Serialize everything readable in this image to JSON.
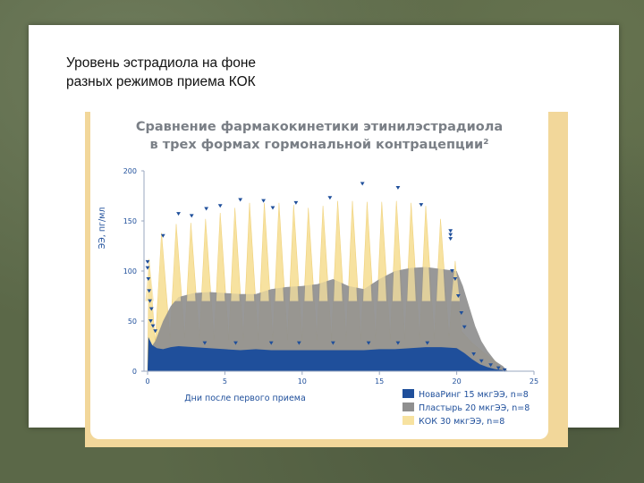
{
  "slide": {
    "title_line1": "Уровень эстрадиола на фоне",
    "title_line2": "разных режимов приема КОК"
  },
  "chart_data": {
    "type": "area",
    "title_line1": "Сравнение фармакокинетики этинилэстрадиола",
    "title_line2": "в трех формах гормональной контрацепции²",
    "xlabel": "Дни после первого приема",
    "ylabel": "ЭЭ, пг/мл",
    "xlim": [
      0,
      25
    ],
    "ylim": [
      0,
      200
    ],
    "x_ticks": [
      0,
      5,
      10,
      15,
      20,
      25
    ],
    "y_ticks": [
      0,
      50,
      100,
      150,
      200
    ],
    "grid": false,
    "legend_position": "bottom-right",
    "colors": {
      "ring": "#1f4f9b",
      "patch": "#8f8f8f",
      "pill": "#f7e2a0",
      "markers": "#1f4f9b",
      "text": "#1f4f9b"
    },
    "series": [
      {
        "name": "НоваРинг 15 мкгЭЭ, n=8",
        "color": "#1f4f9b",
        "points": [
          [
            0,
            0
          ],
          [
            0.05,
            34
          ],
          [
            0.3,
            26
          ],
          [
            0.6,
            23
          ],
          [
            1,
            22
          ],
          [
            1.5,
            24
          ],
          [
            2,
            25
          ],
          [
            3,
            24
          ],
          [
            4,
            23
          ],
          [
            5,
            22
          ],
          [
            6,
            21
          ],
          [
            7,
            22
          ],
          [
            8,
            21
          ],
          [
            9,
            21
          ],
          [
            10,
            21
          ],
          [
            11,
            21
          ],
          [
            12,
            21
          ],
          [
            13,
            21
          ],
          [
            14,
            21
          ],
          [
            15,
            22
          ],
          [
            16,
            22
          ],
          [
            17,
            23
          ],
          [
            18,
            24
          ],
          [
            19,
            24
          ],
          [
            20,
            23
          ],
          [
            20.5,
            18
          ],
          [
            21,
            12
          ],
          [
            21.5,
            7
          ],
          [
            22,
            4
          ],
          [
            22.5,
            2
          ],
          [
            23,
            1
          ],
          [
            23,
            0
          ]
        ]
      },
      {
        "name": "Пластырь 20 мкгЭЭ, n=8",
        "color": "#8f8f8f",
        "points": [
          [
            0,
            0
          ],
          [
            0.05,
            20
          ],
          [
            0.5,
            30
          ],
          [
            1,
            50
          ],
          [
            1.5,
            65
          ],
          [
            2,
            74
          ],
          [
            3,
            78
          ],
          [
            4,
            79
          ],
          [
            5,
            78
          ],
          [
            6,
            77
          ],
          [
            7,
            77
          ],
          [
            8,
            82
          ],
          [
            9,
            84
          ],
          [
            10,
            85
          ],
          [
            11,
            87
          ],
          [
            12,
            92
          ],
          [
            13,
            85
          ],
          [
            14,
            82
          ],
          [
            15,
            92
          ],
          [
            16,
            100
          ],
          [
            17,
            103
          ],
          [
            18,
            104
          ],
          [
            19,
            102
          ],
          [
            20,
            100
          ],
          [
            20.4,
            85
          ],
          [
            20.8,
            65
          ],
          [
            21.2,
            45
          ],
          [
            21.6,
            30
          ],
          [
            22,
            20
          ],
          [
            22.5,
            10
          ],
          [
            23,
            5
          ],
          [
            23.3,
            0
          ]
        ]
      },
      {
        "name": "КОК 30 мкгЭЭ, n=8",
        "color": "#f7e2a0",
        "peaks": [
          [
            0.1,
            112
          ],
          [
            0.9,
            138
          ],
          [
            1.85,
            147
          ],
          [
            2.8,
            148
          ],
          [
            3.75,
            152
          ],
          [
            4.7,
            158
          ],
          [
            5.65,
            163
          ],
          [
            6.6,
            168
          ],
          [
            7.55,
            168
          ],
          [
            8.5,
            168
          ],
          [
            9.45,
            166
          ],
          [
            10.4,
            163
          ],
          [
            11.35,
            165
          ],
          [
            12.3,
            170
          ],
          [
            13.25,
            170
          ],
          [
            14.2,
            169
          ],
          [
            15.15,
            169
          ],
          [
            16.1,
            170
          ],
          [
            17.05,
            168
          ],
          [
            18.0,
            165
          ],
          [
            18.95,
            152
          ],
          [
            19.9,
            110
          ]
        ],
        "troughs": [
          [
            0.5,
            28
          ],
          [
            1.45,
            32
          ],
          [
            2.4,
            33
          ],
          [
            3.35,
            32
          ],
          [
            4.3,
            31
          ],
          [
            5.25,
            31
          ],
          [
            6.2,
            31
          ],
          [
            7.15,
            31
          ],
          [
            8.1,
            31
          ],
          [
            9.05,
            31
          ],
          [
            10.0,
            31
          ],
          [
            10.95,
            31
          ],
          [
            11.9,
            31
          ],
          [
            12.85,
            31
          ],
          [
            13.8,
            31
          ],
          [
            14.75,
            31
          ],
          [
            15.7,
            31
          ],
          [
            16.65,
            31
          ],
          [
            17.6,
            31
          ],
          [
            18.55,
            32
          ],
          [
            19.5,
            33
          ]
        ],
        "tail": [
          [
            20.3,
            40
          ],
          [
            21,
            28
          ],
          [
            21.8,
            18
          ],
          [
            22.5,
            10
          ],
          [
            22.9,
            3
          ]
        ]
      }
    ],
    "marker_points": [
      [
        0,
        109
      ],
      [
        0,
        103
      ],
      [
        0.05,
        92
      ],
      [
        0.1,
        80
      ],
      [
        0.15,
        70
      ],
      [
        0.25,
        62
      ],
      [
        0.35,
        45
      ],
      [
        0.5,
        40
      ],
      [
        1.0,
        135
      ],
      [
        2.0,
        157
      ],
      [
        2.85,
        155
      ],
      [
        3.8,
        162
      ],
      [
        4.7,
        165
      ],
      [
        6.0,
        171
      ],
      [
        7.5,
        170
      ],
      [
        8.1,
        163
      ],
      [
        9.6,
        168
      ],
      [
        11.8,
        173
      ],
      [
        13.9,
        187
      ],
      [
        16.2,
        183
      ],
      [
        17.7,
        166
      ],
      [
        19.6,
        140
      ],
      [
        19.6,
        136
      ],
      [
        19.6,
        132
      ],
      [
        19.7,
        100
      ],
      [
        19.9,
        92
      ],
      [
        20.1,
        75
      ],
      [
        20.3,
        58
      ],
      [
        20.5,
        44
      ],
      [
        0.2,
        50
      ],
      [
        3.7,
        28
      ],
      [
        5.7,
        28
      ],
      [
        8.0,
        28
      ],
      [
        9.8,
        28
      ],
      [
        12.0,
        28
      ],
      [
        14.3,
        28
      ],
      [
        16.2,
        28
      ],
      [
        18.1,
        28
      ],
      [
        21.1,
        17
      ],
      [
        21.6,
        10
      ],
      [
        22.2,
        6
      ],
      [
        22.7,
        3
      ],
      [
        23.1,
        1
      ]
    ]
  }
}
